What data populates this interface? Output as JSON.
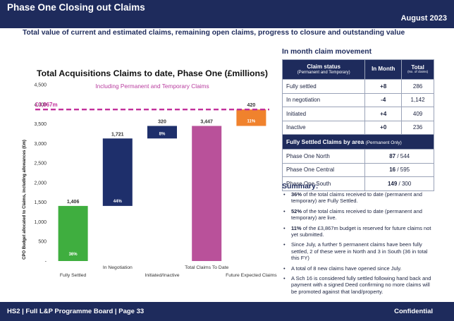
{
  "header": {
    "title": "Phase One Closing out Claims",
    "date": "August 2023"
  },
  "subtitle": "Total value of current and estimated claims, remaining open claims, progress to closure and outstanding value",
  "chart_data": {
    "type": "bar",
    "title": "Total Acquisitions Claims to date, Phase One (£millions)",
    "subtitle": "Including Permanent and Temporary Claims",
    "ylabel": "CPO Budget allocated to Claims, including allowances (£m)",
    "ylim": [
      0,
      4500
    ],
    "yticks": [
      0,
      500,
      1000,
      1500,
      2000,
      2500,
      3000,
      3500,
      4000,
      4500
    ],
    "ytick_labels": [
      "-",
      "500",
      "1,000",
      "1,500",
      "2,000",
      "2,500",
      "3,000",
      "3,500",
      "4,000",
      "4,500"
    ],
    "categories": [
      "Fully Settled",
      "In Negotiation",
      "Initiated/Inactive",
      "Total Claims To Date",
      "Future Expected Claims"
    ],
    "bars": [
      {
        "base": 0,
        "value": 1406,
        "label": "1,406",
        "pct": "36%",
        "color": "#3fae3f"
      },
      {
        "base": 1406,
        "value": 1721,
        "label": "1,721",
        "pct": "44%",
        "color": "#1e2f6b"
      },
      {
        "base": 3127,
        "value": 320,
        "label": "320",
        "pct": "8%",
        "color": "#1e2f6b"
      },
      {
        "base": 0,
        "value": 3447,
        "label": "3,447",
        "pct": "",
        "color": "#b9519a"
      },
      {
        "base": 3447,
        "value": 420,
        "label": "420",
        "pct": "11%",
        "color": "#f0822d"
      }
    ],
    "budget_line": {
      "value": 3867,
      "label": "£3,867m",
      "color": "#c2309b"
    },
    "grid": false,
    "legend": "none"
  },
  "movement": {
    "title": "In month claim movement",
    "col_status": "Claim status",
    "col_status_sub": "(Permanent and Temporary)",
    "col_month": "In Month",
    "col_total": "Total",
    "col_total_sub": "(No. of claims)",
    "rows": [
      {
        "status": "Fully settled",
        "month": "+8",
        "total": "286"
      },
      {
        "status": "In negotiation",
        "month": "-4",
        "total": "1,142"
      },
      {
        "status": "Initiated",
        "month": "+4",
        "total": "409"
      },
      {
        "status": "Inactive",
        "month": "+0",
        "total": "236"
      }
    ],
    "area_title": "Fully Settled Claims by area",
    "area_title_sub": "(Permanent Only)",
    "areas": [
      {
        "name": "Phase One North",
        "settled": "87",
        "total": "544"
      },
      {
        "name": "Phase One Central",
        "settled": "16",
        "total": "595"
      },
      {
        "name": "Phase One South",
        "settled": "149",
        "total": "300"
      }
    ]
  },
  "summary": {
    "title": "Summary:",
    "items": [
      {
        "bold": "36%",
        "text": " of the total claims received to date (permanent and temporary) are Fully Settled."
      },
      {
        "bold": "52%",
        "text": " of the total claims received to date (permanent and temporary) are live."
      },
      {
        "bold": "11%",
        "text": " of the £3,867m budget is reserved for future claims not yet submitted."
      },
      {
        "bold": "",
        "text": "Since July, a further 5 permanent claims have been fully settled, 2 of these were in North and 3 in South (36 in total this FY)"
      },
      {
        "bold": "",
        "text": "A total of 8 new claims have opened since July."
      },
      {
        "bold": "",
        "text": "A Sch 16 is considered fully settled following hand back and payment with a signed Deed confirming no more claims will be promoted against that land/property."
      }
    ]
  },
  "footer": {
    "left": "HS2 | Full L&P Programme Board | Page 33",
    "right": "Confidential"
  }
}
